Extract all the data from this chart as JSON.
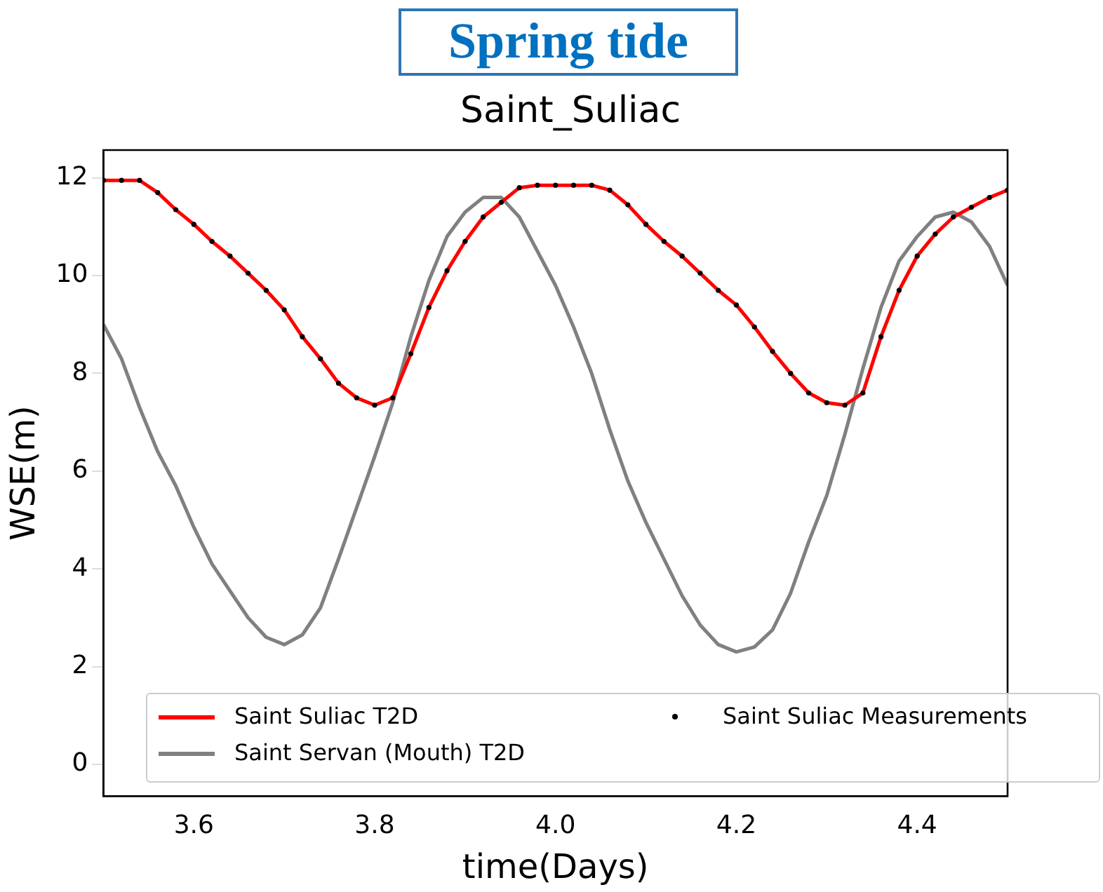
{
  "chart_data": {
    "type": "line",
    "title": "Spring tide",
    "subtitle": "Saint_Suliac",
    "xlabel": "time(Days)",
    "ylabel": "WSE(m)",
    "x": [
      3.5,
      3.52,
      3.54,
      3.56,
      3.58,
      3.6,
      3.62,
      3.64,
      3.66,
      3.68,
      3.7,
      3.72,
      3.74,
      3.76,
      3.78,
      3.8,
      3.82,
      3.84,
      3.86,
      3.88,
      3.9,
      3.92,
      3.94,
      3.96,
      3.98,
      4.0,
      4.02,
      4.04,
      4.06,
      4.08,
      4.1,
      4.12,
      4.14,
      4.16,
      4.18,
      4.2,
      4.22,
      4.24,
      4.26,
      4.28,
      4.3,
      4.32,
      4.34,
      4.36,
      4.38,
      4.4,
      4.42,
      4.44,
      4.46,
      4.48,
      4.5
    ],
    "series": [
      {
        "name": "Saint Suliac T2D",
        "color": "#ff0000",
        "values": [
          11.95,
          11.95,
          11.95,
          11.7,
          11.35,
          11.05,
          10.7,
          10.4,
          10.05,
          9.7,
          9.3,
          8.75,
          8.3,
          7.8,
          7.5,
          7.35,
          7.5,
          8.4,
          9.35,
          10.1,
          10.7,
          11.2,
          11.5,
          11.8,
          11.85,
          11.85,
          11.85,
          11.85,
          11.75,
          11.45,
          11.05,
          10.7,
          10.4,
          10.05,
          9.7,
          9.4,
          8.95,
          8.45,
          8.0,
          7.6,
          7.4,
          7.35,
          7.6,
          8.75,
          9.7,
          10.4,
          10.85,
          11.2,
          11.4,
          11.6,
          11.75
        ]
      },
      {
        "name": "Saint Servan (Mouth) T2D",
        "color": "#808080",
        "values": [
          9.0,
          8.3,
          7.3,
          6.4,
          5.7,
          4.85,
          4.1,
          3.55,
          3.0,
          2.6,
          2.45,
          2.65,
          3.2,
          4.2,
          5.25,
          6.3,
          7.4,
          8.75,
          9.9,
          10.8,
          11.3,
          11.6,
          11.6,
          11.2,
          10.5,
          9.8,
          8.95,
          8.0,
          6.85,
          5.8,
          4.95,
          4.2,
          3.45,
          2.85,
          2.45,
          2.3,
          2.4,
          2.75,
          3.5,
          4.55,
          5.5,
          6.75,
          8.1,
          9.35,
          10.3,
          10.8,
          11.2,
          11.3,
          11.1,
          10.6,
          9.8
        ]
      },
      {
        "name": "Saint Suliac Measurements",
        "color": "#000000",
        "type": "scatter",
        "marker": "circle",
        "values": [
          11.95,
          11.95,
          11.95,
          11.7,
          11.35,
          11.05,
          10.7,
          10.4,
          10.05,
          9.7,
          9.3,
          8.75,
          8.3,
          7.8,
          7.5,
          7.35,
          7.5,
          8.4,
          9.35,
          10.1,
          10.7,
          11.2,
          11.5,
          11.8,
          11.85,
          11.85,
          11.85,
          11.85,
          11.75,
          11.45,
          11.05,
          10.7,
          10.4,
          10.05,
          9.7,
          9.4,
          8.95,
          8.45,
          8.0,
          7.6,
          7.4,
          7.35,
          7.6,
          8.75,
          9.7,
          10.4,
          10.85,
          11.2,
          11.4,
          11.6,
          11.75
        ]
      }
    ],
    "xlim": [
      3.5,
      4.5
    ],
    "xticks": [
      {
        "value": 3.6,
        "label": "3.6"
      },
      {
        "value": 3.8,
        "label": "3.8"
      },
      {
        "value": 4.0,
        "label": "4.0"
      },
      {
        "value": 4.2,
        "label": "4.2"
      },
      {
        "value": 4.4,
        "label": "4.4"
      }
    ],
    "ylim": [
      -0.65,
      12.57
    ],
    "yticks": [
      0,
      2,
      4,
      6,
      8,
      10,
      12
    ],
    "legend": "bottom",
    "grid": false
  }
}
